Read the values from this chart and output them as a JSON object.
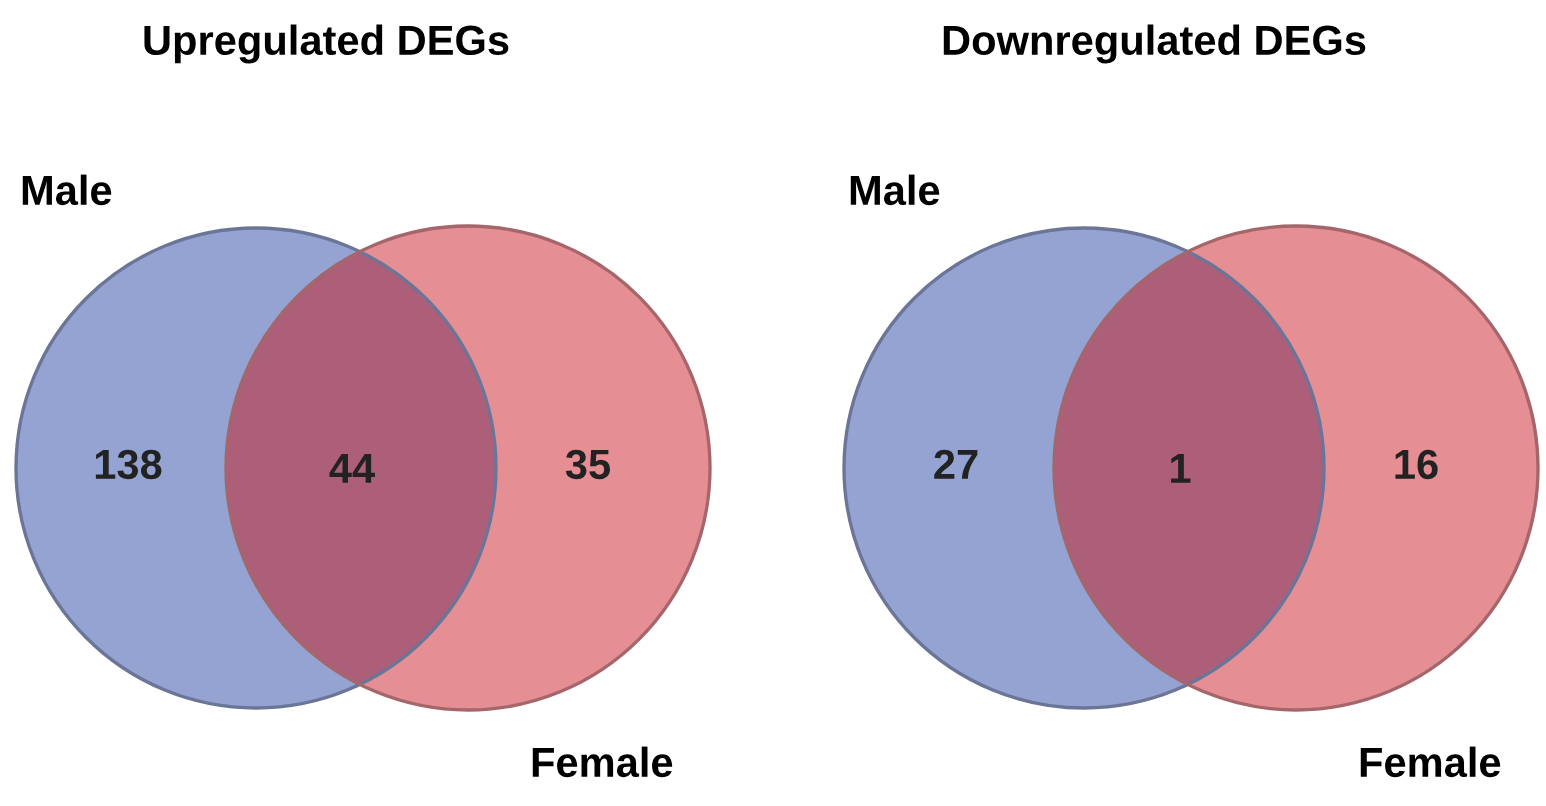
{
  "chart_data": [
    {
      "type": "other",
      "title": "Upregulated DEGs",
      "categories": [
        "Male",
        null,
        "Female"
      ],
      "values": [
        138,
        44,
        35
      ],
      "data_labels": true,
      "colors": [
        "#94a3d2",
        "#ad5f7a",
        "#e58e94"
      ]
    },
    {
      "type": "other",
      "title": "Downregulated DEGs",
      "categories": [
        "Male",
        null,
        "Female"
      ],
      "values": [
        27,
        1,
        16
      ],
      "data_labels": true,
      "colors": [
        "#94a3d2",
        "#ad5f7a",
        "#e58e94"
      ]
    }
  ]
}
